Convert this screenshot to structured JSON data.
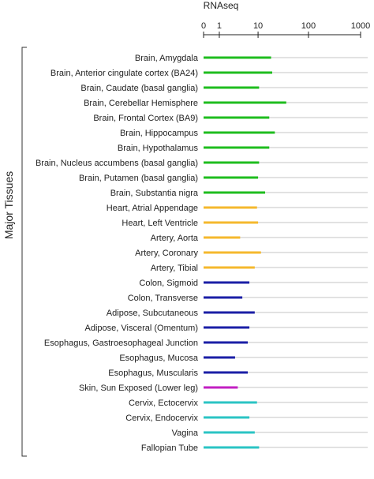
{
  "chart_data": {
    "type": "bar",
    "title": "RNAseq",
    "xlabel": "RNAseq",
    "ylabel": "Major Tissues",
    "xscale": "log1p",
    "xlim": [
      0,
      1000
    ],
    "xticks": [
      0,
      1,
      10,
      100,
      1000
    ],
    "xtick_labels": [
      "0",
      "1",
      "10",
      "100",
      "1000"
    ],
    "grid": true,
    "categories": [
      "Brain, Amygdala",
      "Brain, Anterior cingulate cortex (BA24)",
      "Brain, Caudate (basal ganglia)",
      "Brain, Cerebellar Hemisphere",
      "Brain, Frontal Cortex (BA9)",
      "Brain, Hippocampus",
      "Brain, Hypothalamus",
      "Brain, Nucleus accumbens (basal ganglia)",
      "Brain, Putamen (basal ganglia)",
      "Brain, Substantia nigra",
      "Heart, Atrial Appendage",
      "Heart, Left Ventricle",
      "Artery, Aorta",
      "Artery, Coronary",
      "Artery, Tibial",
      "Colon, Sigmoid",
      "Colon, Transverse",
      "Adipose, Subcutaneous",
      "Adipose, Visceral (Omentum)",
      "Esophagus, Gastroesophageal Junction",
      "Esophagus, Mucosa",
      "Esophagus, Muscularis",
      "Skin, Sun Exposed (Lower leg)",
      "Cervix, Ectocervix",
      "Cervix, Endocervix",
      "Vagina",
      "Fallopian Tube"
    ],
    "values": [
      18.5,
      19.5,
      10.5,
      37,
      17,
      22,
      17,
      10.5,
      10,
      14,
      9.5,
      10,
      4,
      11.5,
      8.5,
      6.5,
      4.5,
      8.5,
      6.5,
      6,
      3,
      6,
      3.5,
      9.5,
      6.5,
      8.5,
      10.5
    ],
    "bar_colors": [
      "#1fbd1f",
      "#1fbd1f",
      "#1fbd1f",
      "#1fbd1f",
      "#1fbd1f",
      "#1fbd1f",
      "#1fbd1f",
      "#1fbd1f",
      "#1fbd1f",
      "#1fbd1f",
      "#f5b82e",
      "#f5b82e",
      "#f5b82e",
      "#f5b82e",
      "#f5b82e",
      "#1b1fa6",
      "#1b1fa6",
      "#1b1fa6",
      "#1b1fa6",
      "#1b1fa6",
      "#1b1fa6",
      "#1b1fa6",
      "#c21fc2",
      "#2bc4c4",
      "#2bc4c4",
      "#2bc4c4",
      "#2bc4c4"
    ]
  }
}
